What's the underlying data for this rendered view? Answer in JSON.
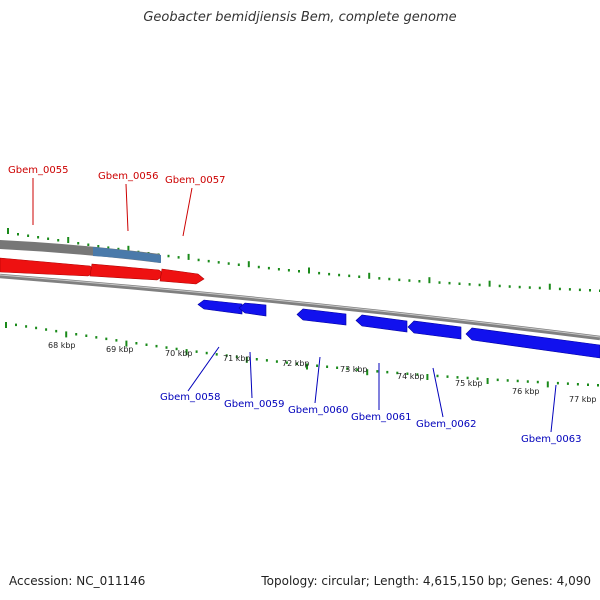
{
  "title": "Geobacter bemidjiensis Bem, complete genome",
  "footer": {
    "accession": "Accession: NC_011146",
    "summary": "Topology: circular; Length: 4,615,150 bp; Genes: 4,090"
  },
  "colors": {
    "forward_gene": "#ee1111",
    "reverse_gene": "#1111ee",
    "forward_label": "#cc0000",
    "reverse_label": "#0000bb",
    "tick": "#1a8a1a",
    "backbone": "#808080",
    "highlight": "#4a7aaa"
  },
  "kbp_ticks": [
    {
      "label": "68 kbp",
      "kbp": 68
    },
    {
      "label": "69 kbp",
      "kbp": 69
    },
    {
      "label": "70 kbp",
      "kbp": 70
    },
    {
      "label": "71 kbp",
      "kbp": 71
    },
    {
      "label": "72 kbp",
      "kbp": 72
    },
    {
      "label": "73 kbp",
      "kbp": 73
    },
    {
      "label": "74 kbp",
      "kbp": 74
    },
    {
      "label": "75 kbp",
      "kbp": 75
    },
    {
      "label": "76 kbp",
      "kbp": 76
    },
    {
      "label": "77 kbp",
      "kbp": 77
    }
  ],
  "genes": [
    {
      "name": "Gbem_0055",
      "strand": "+"
    },
    {
      "name": "Gbem_0056",
      "strand": "+"
    },
    {
      "name": "Gbem_0057",
      "strand": "+"
    },
    {
      "name": "Gbem_0058",
      "strand": "-"
    },
    {
      "name": "Gbem_0059",
      "strand": "-"
    },
    {
      "name": "Gbem_0060",
      "strand": "-"
    },
    {
      "name": "Gbem_0061",
      "strand": "-"
    },
    {
      "name": "Gbem_0062",
      "strand": "-"
    },
    {
      "name": "Gbem_0063",
      "strand": "-"
    }
  ]
}
